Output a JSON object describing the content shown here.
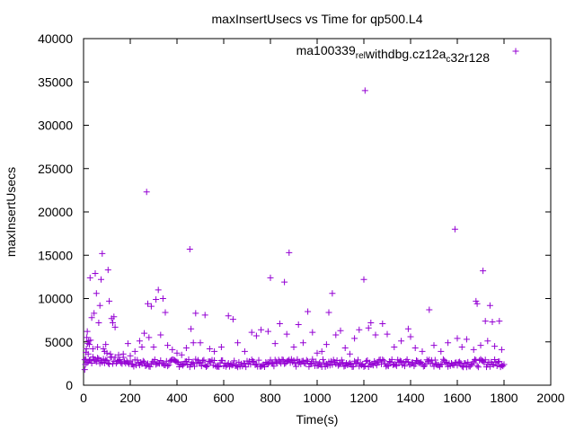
{
  "chart_data": {
    "type": "scatter",
    "title": "maxInsertUsecs vs Time for qp500.L4",
    "xlabel": "Time(s)",
    "ylabel": "maxInsertUsecs",
    "xlim": [
      0,
      2000
    ],
    "ylim": [
      0,
      40000
    ],
    "xticks": [
      0,
      200,
      400,
      600,
      800,
      1000,
      1200,
      1400,
      1600,
      1800,
      2000
    ],
    "yticks": [
      0,
      5000,
      10000,
      15000,
      20000,
      25000,
      30000,
      35000,
      40000
    ],
    "grid": false,
    "legend_position": "top-right",
    "marker": "+",
    "series": [
      {
        "name": "ma100339_rel_withdbg.cz12a_c32r128",
        "color": "#9400d3",
        "baseline": {
          "x_range": [
            5,
            1800
          ],
          "typical_max_usecs": 2600,
          "approx_points": 360
        },
        "points": [
          [
            5,
            1800
          ],
          [
            8,
            2400
          ],
          [
            10,
            3800
          ],
          [
            12,
            4200
          ],
          [
            14,
            5500
          ],
          [
            16,
            6200
          ],
          [
            18,
            4800
          ],
          [
            20,
            3600
          ],
          [
            22,
            5100
          ],
          [
            25,
            4700
          ],
          [
            28,
            12400
          ],
          [
            30,
            5200
          ],
          [
            35,
            7800
          ],
          [
            40,
            4200
          ],
          [
            45,
            8300
          ],
          [
            50,
            12900
          ],
          [
            55,
            10600
          ],
          [
            60,
            4400
          ],
          [
            65,
            7200
          ],
          [
            70,
            9200
          ],
          [
            75,
            12200
          ],
          [
            80,
            15200
          ],
          [
            85,
            4200
          ],
          [
            90,
            3900
          ],
          [
            95,
            4700
          ],
          [
            100,
            3700
          ],
          [
            105,
            13300
          ],
          [
            110,
            9700
          ],
          [
            115,
            3600
          ],
          [
            120,
            7700
          ],
          [
            125,
            7200
          ],
          [
            130,
            7900
          ],
          [
            135,
            6700
          ],
          [
            150,
            3500
          ],
          [
            170,
            3600
          ],
          [
            190,
            4800
          ],
          [
            200,
            3400
          ],
          [
            220,
            3900
          ],
          [
            240,
            5100
          ],
          [
            250,
            4400
          ],
          [
            260,
            6000
          ],
          [
            270,
            22300
          ],
          [
            275,
            9400
          ],
          [
            280,
            5500
          ],
          [
            290,
            9100
          ],
          [
            300,
            4400
          ],
          [
            310,
            9900
          ],
          [
            320,
            11000
          ],
          [
            330,
            5800
          ],
          [
            340,
            10000
          ],
          [
            350,
            8400
          ],
          [
            360,
            4600
          ],
          [
            380,
            4100
          ],
          [
            400,
            3700
          ],
          [
            420,
            3500
          ],
          [
            440,
            4300
          ],
          [
            455,
            15700
          ],
          [
            460,
            6500
          ],
          [
            470,
            4900
          ],
          [
            480,
            8300
          ],
          [
            500,
            4900
          ],
          [
            520,
            8100
          ],
          [
            540,
            4200
          ],
          [
            560,
            3900
          ],
          [
            590,
            4400
          ],
          [
            620,
            8000
          ],
          [
            640,
            7600
          ],
          [
            660,
            4900
          ],
          [
            690,
            3900
          ],
          [
            720,
            6100
          ],
          [
            740,
            5700
          ],
          [
            760,
            6400
          ],
          [
            790,
            6200
          ],
          [
            800,
            12400
          ],
          [
            820,
            4800
          ],
          [
            840,
            7100
          ],
          [
            860,
            11900
          ],
          [
            870,
            5900
          ],
          [
            880,
            15300
          ],
          [
            900,
            4400
          ],
          [
            920,
            7000
          ],
          [
            940,
            4900
          ],
          [
            960,
            8500
          ],
          [
            980,
            6100
          ],
          [
            1000,
            3700
          ],
          [
            1020,
            3900
          ],
          [
            1040,
            4700
          ],
          [
            1050,
            8400
          ],
          [
            1065,
            10600
          ],
          [
            1080,
            5800
          ],
          [
            1100,
            6300
          ],
          [
            1120,
            4300
          ],
          [
            1140,
            3600
          ],
          [
            1160,
            5400
          ],
          [
            1180,
            6400
          ],
          [
            1200,
            12200
          ],
          [
            1205,
            34000
          ],
          [
            1220,
            6600
          ],
          [
            1230,
            7200
          ],
          [
            1250,
            5800
          ],
          [
            1280,
            7100
          ],
          [
            1300,
            5900
          ],
          [
            1330,
            4400
          ],
          [
            1360,
            5100
          ],
          [
            1390,
            6500
          ],
          [
            1400,
            5600
          ],
          [
            1420,
            4300
          ],
          [
            1450,
            3900
          ],
          [
            1480,
            8700
          ],
          [
            1500,
            4600
          ],
          [
            1530,
            3900
          ],
          [
            1560,
            4900
          ],
          [
            1590,
            18000
          ],
          [
            1600,
            5400
          ],
          [
            1620,
            4400
          ],
          [
            1640,
            5300
          ],
          [
            1670,
            4100
          ],
          [
            1680,
            9700
          ],
          [
            1685,
            9400
          ],
          [
            1700,
            4600
          ],
          [
            1710,
            13200
          ],
          [
            1720,
            7400
          ],
          [
            1730,
            5100
          ],
          [
            1740,
            9200
          ],
          [
            1750,
            7300
          ],
          [
            1760,
            4500
          ],
          [
            1780,
            7400
          ],
          [
            1790,
            4100
          ]
        ]
      }
    ]
  }
}
